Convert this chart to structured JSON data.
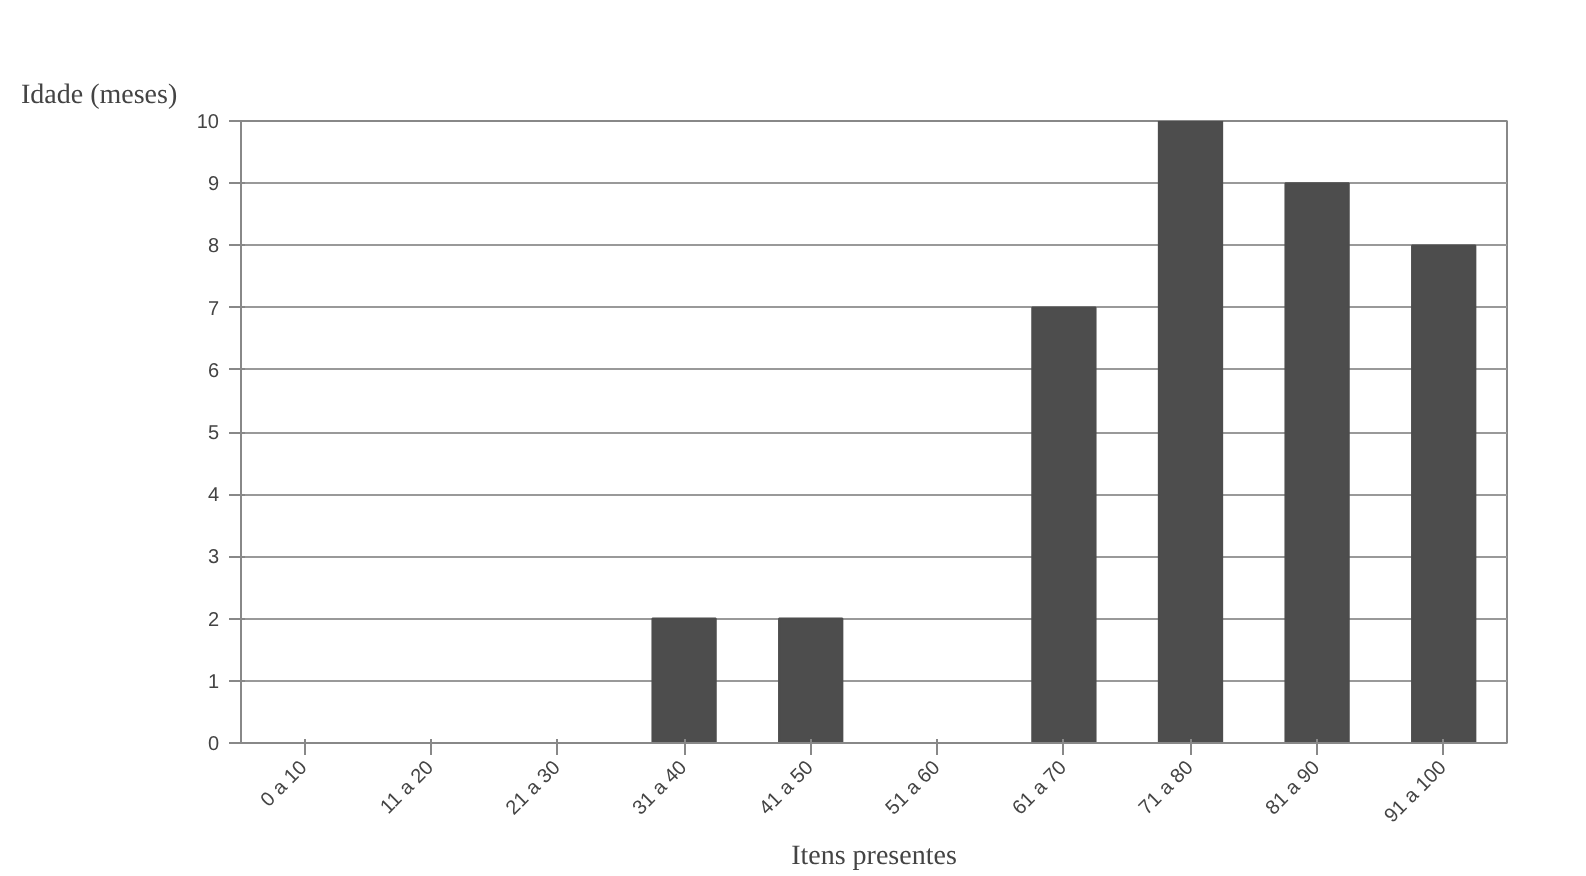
{
  "chart_data": {
    "type": "bar",
    "ylabel": "Idade (meses)",
    "xlabel": "Itens presentes",
    "categories": [
      "0 a 10",
      "11 a 20",
      "21 a 30",
      "31 a 40",
      "41 a 50",
      "51 a 60",
      "61 a 70",
      "71 a 80",
      "81 a 90",
      "91 a 100"
    ],
    "values": [
      0,
      0,
      0,
      2,
      2,
      0,
      7,
      10,
      9,
      8
    ],
    "color": "#4d4d4d",
    "ylim": [
      0,
      10
    ],
    "yticks": [
      0,
      1,
      2,
      3,
      4,
      5,
      6,
      7,
      8,
      9,
      10
    ],
    "grid": "y"
  }
}
